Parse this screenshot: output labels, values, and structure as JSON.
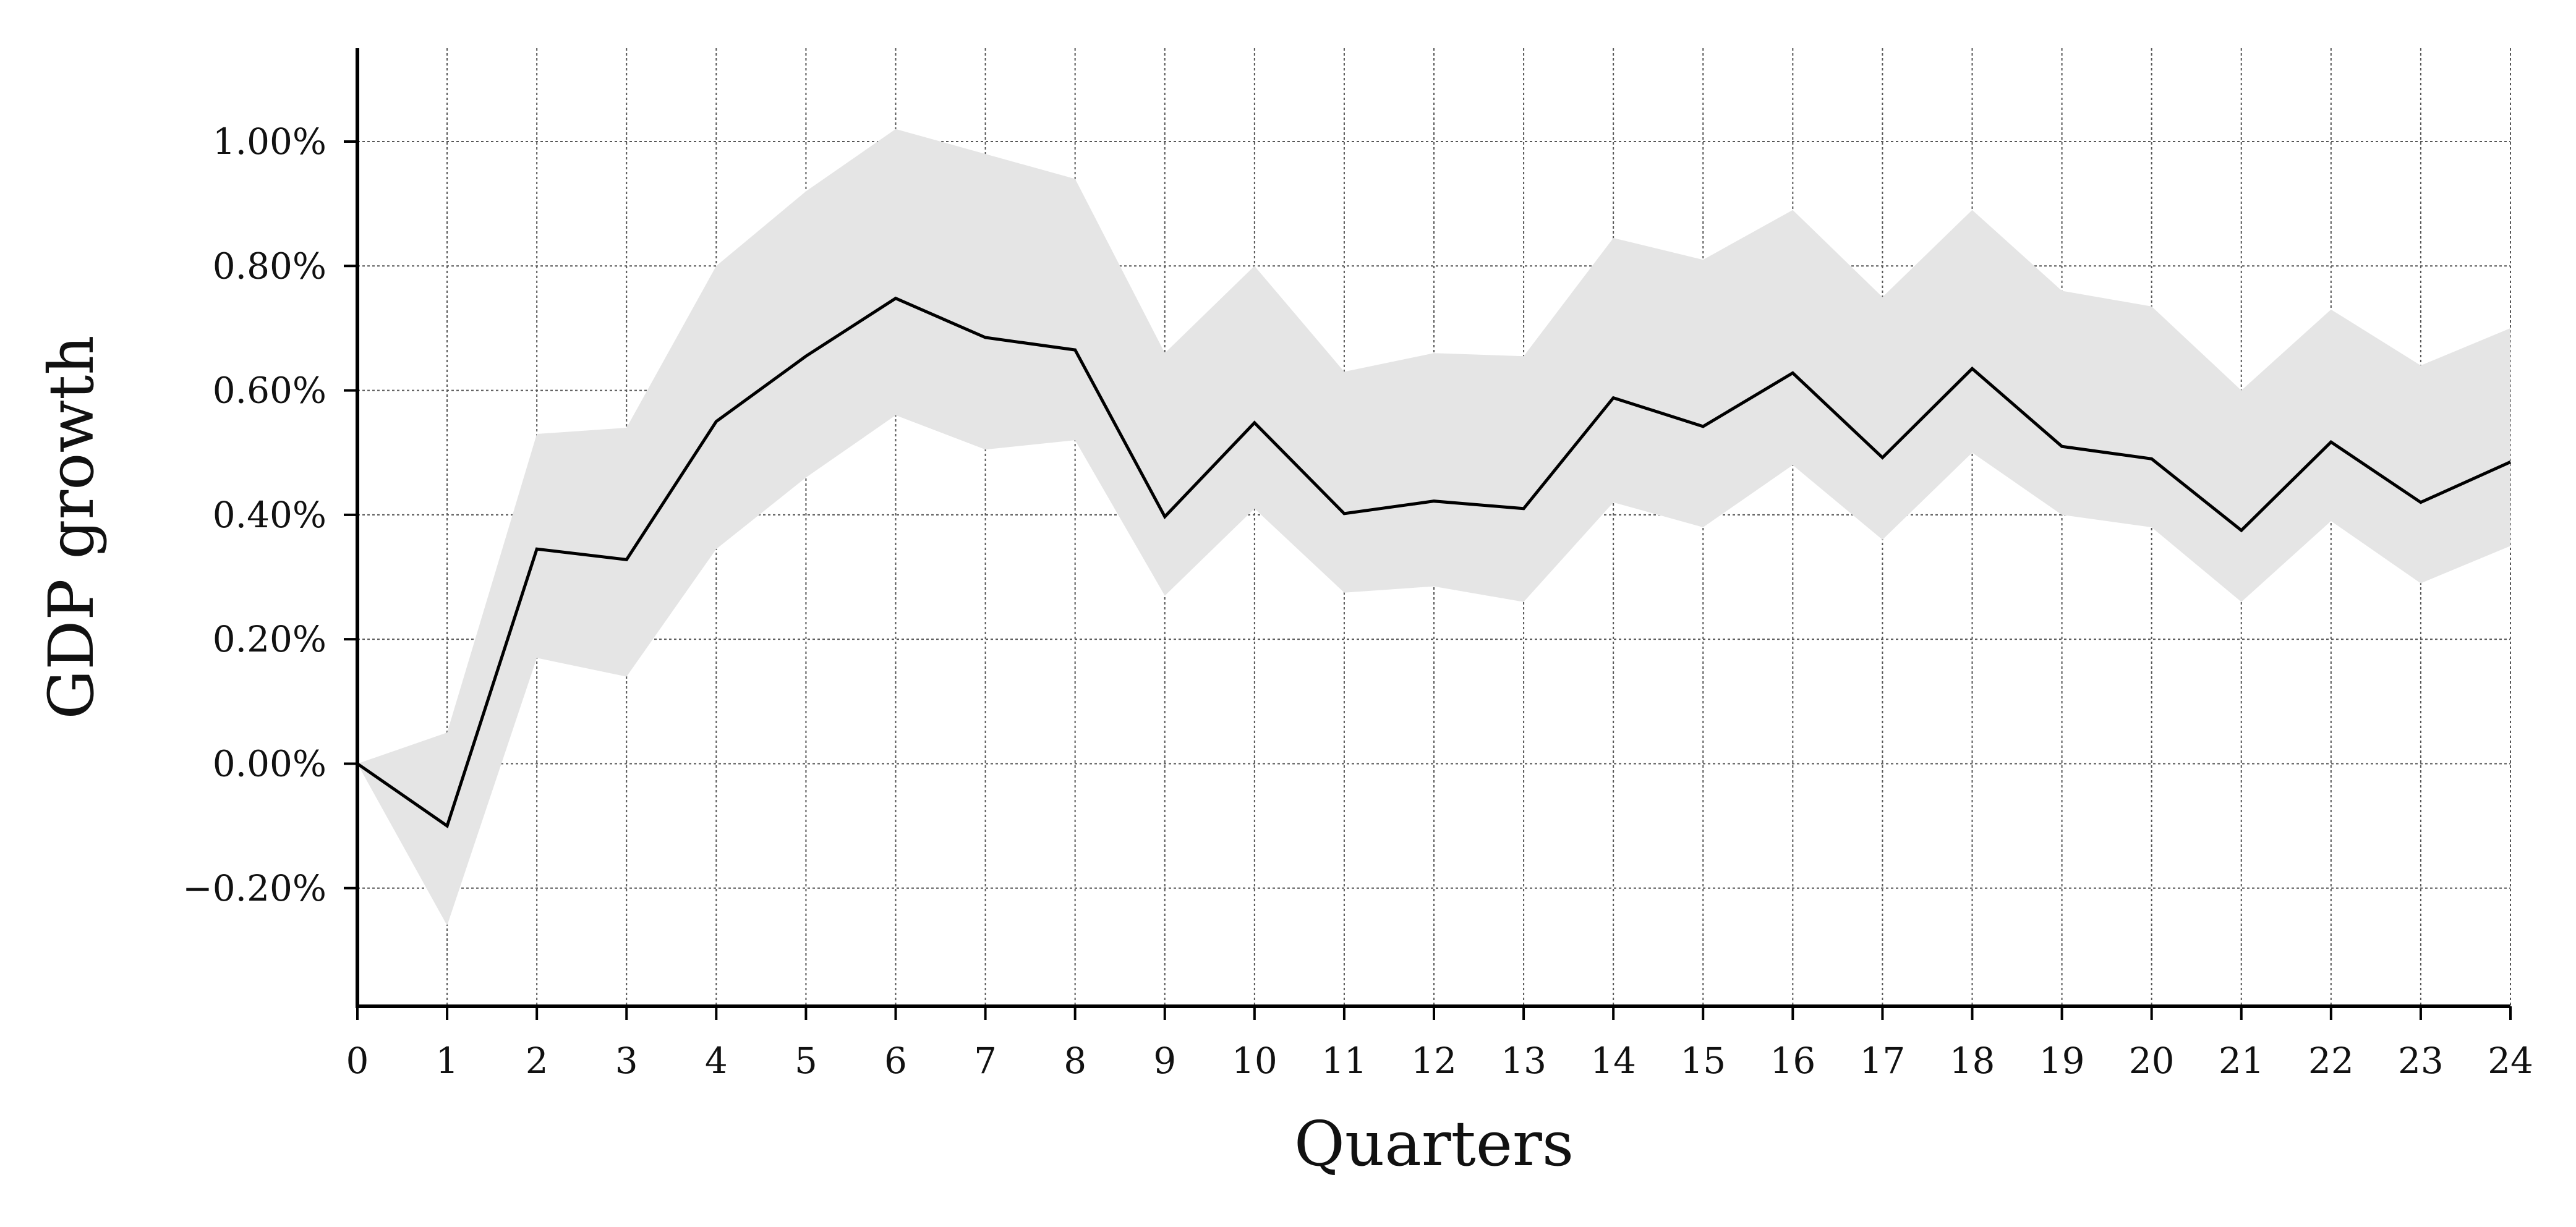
{
  "chart_data": {
    "type": "line",
    "title": "",
    "xlabel": "Quarters",
    "ylabel": "GDP growth",
    "x": [
      0,
      1,
      2,
      3,
      4,
      5,
      6,
      7,
      8,
      9,
      10,
      11,
      12,
      13,
      14,
      15,
      16,
      17,
      18,
      19,
      20,
      21,
      22,
      23,
      24
    ],
    "xlim": [
      0,
      24
    ],
    "ylim": [
      -0.39,
      1.15
    ],
    "y_unit": "%",
    "x_ticks": [
      0,
      1,
      2,
      3,
      4,
      5,
      6,
      7,
      8,
      9,
      10,
      11,
      12,
      13,
      14,
      15,
      16,
      17,
      18,
      19,
      20,
      21,
      22,
      23,
      24
    ],
    "y_ticks": [
      -0.2,
      0.0,
      0.2,
      0.4,
      0.6,
      0.8,
      1.0
    ],
    "y_tick_labels": [
      "−0.20%",
      "0.00%",
      "0.20%",
      "0.40%",
      "0.60%",
      "0.80%",
      "1.00%"
    ],
    "grid": true,
    "series": [
      {
        "values": [
          0.0,
          -0.1,
          0.345,
          0.328,
          0.55,
          0.655,
          0.748,
          0.685,
          0.665,
          0.397,
          0.548,
          0.402,
          0.422,
          0.41,
          0.588,
          0.542,
          0.628,
          0.492,
          0.635,
          0.51,
          0.49,
          0.375,
          0.517,
          0.42,
          0.485
        ],
        "color": "#000000"
      }
    ],
    "band": {
      "upper": [
        0.0,
        0.05,
        0.53,
        0.54,
        0.8,
        0.92,
        1.02,
        0.98,
        0.94,
        0.66,
        0.8,
        0.63,
        0.66,
        0.655,
        0.845,
        0.81,
        0.89,
        0.75,
        0.89,
        0.76,
        0.735,
        0.6,
        0.73,
        0.64,
        0.7
      ],
      "lower": [
        0.0,
        -0.26,
        0.17,
        0.14,
        0.345,
        0.46,
        0.56,
        0.505,
        0.52,
        0.27,
        0.41,
        0.275,
        0.285,
        0.26,
        0.42,
        0.38,
        0.48,
        0.36,
        0.5,
        0.4,
        0.38,
        0.26,
        0.39,
        0.29,
        0.35
      ],
      "color": "#e5e5e5"
    }
  }
}
